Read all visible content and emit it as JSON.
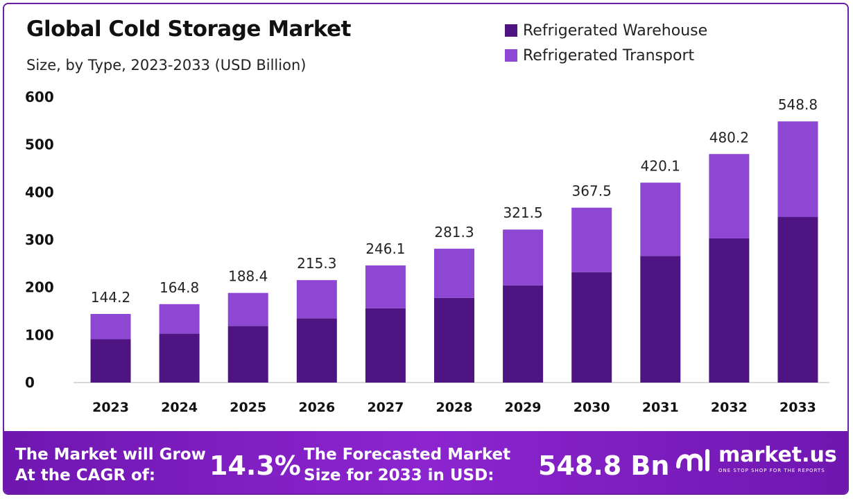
{
  "title": "Global Cold Storage Market",
  "subtitle": "Size, by Type, 2023-2033 (USD Billion)",
  "colors": {
    "warehouse": "#4e1582",
    "transport": "#8d47d3",
    "axis": "#cccccc"
  },
  "chart_data": {
    "type": "bar",
    "stacked": true,
    "categories": [
      "2023",
      "2024",
      "2025",
      "2026",
      "2027",
      "2028",
      "2029",
      "2030",
      "2031",
      "2032",
      "2033"
    ],
    "series": [
      {
        "name": "Refrigerated Warehouse",
        "values": [
          91,
          103,
          119,
          135,
          156,
          178,
          204,
          232,
          266,
          303,
          348
        ]
      },
      {
        "name": "Refrigerated Transport",
        "values": [
          53.2,
          61.8,
          69.4,
          80.3,
          90.1,
          103.3,
          117.5,
          135.5,
          154.1,
          177.2,
          200.8
        ]
      }
    ],
    "totals": [
      "144.2",
      "164.8",
      "188.4",
      "215.3",
      "246.1",
      "281.3",
      "321.5",
      "367.5",
      "420.1",
      "480.2",
      "548.8"
    ],
    "ylim": [
      0,
      600
    ],
    "yticks": [
      0,
      100,
      200,
      300,
      400,
      500,
      600
    ],
    "grid": false,
    "legend_position": "top-right"
  },
  "footer": {
    "cagr_line1": "The Market will Grow",
    "cagr_line2": "At the CAGR of:",
    "cagr_value": "14.3%",
    "forecast_line1": "The Forecasted Market",
    "forecast_line2": "Size for 2033 in USD:",
    "forecast_value": "548.8 Bn",
    "brand": "market.us",
    "tagline": "ONE STOP SHOP FOR THE REPORTS"
  }
}
